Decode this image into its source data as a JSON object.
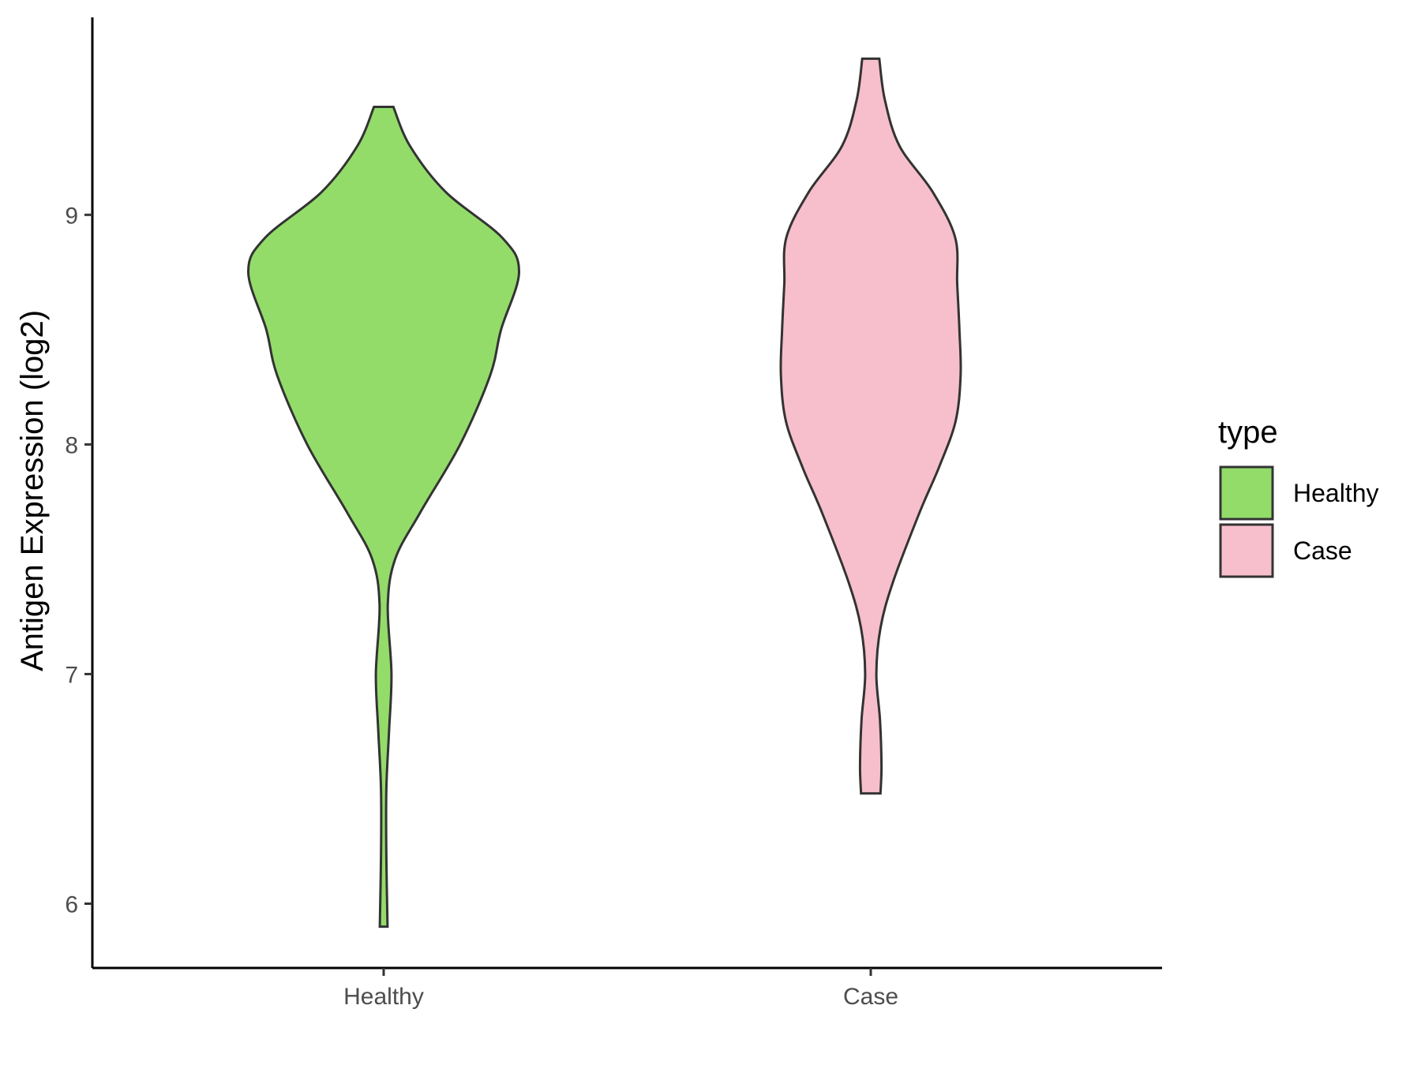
{
  "chart_data": {
    "type": "violin",
    "ylabel": "Antigen Expression (log2)",
    "xlabel": "",
    "categories": [
      "Healthy",
      "Case"
    ],
    "yticks": [
      6,
      7,
      8,
      9
    ],
    "ylim": [
      5.72,
      9.86
    ],
    "grid": false,
    "legend": {
      "title": "type",
      "position": "right",
      "items": [
        {
          "label": "Healthy",
          "color": "#93dc6a"
        },
        {
          "label": "Case",
          "color": "#f7bfcb"
        }
      ]
    },
    "series": [
      {
        "name": "Healthy",
        "color": "#93dc6a",
        "min": 5.9,
        "max": 9.47,
        "half_width_profile": [
          [
            5.9,
            0.016
          ],
          [
            6.2,
            0.011
          ],
          [
            6.5,
            0.011
          ],
          [
            6.75,
            0.022
          ],
          [
            7.0,
            0.032
          ],
          [
            7.3,
            0.017
          ],
          [
            7.5,
            0.047
          ],
          [
            7.7,
            0.148
          ],
          [
            8.0,
            0.314
          ],
          [
            8.3,
            0.437
          ],
          [
            8.5,
            0.482
          ],
          [
            8.75,
            0.556
          ],
          [
            8.9,
            0.487
          ],
          [
            9.1,
            0.254
          ],
          [
            9.3,
            0.108
          ],
          [
            9.47,
            0.04
          ]
        ]
      },
      {
        "name": "Case",
        "color": "#f7bfcb",
        "min": 6.48,
        "max": 9.68,
        "half_width_profile": [
          [
            6.48,
            0.04
          ],
          [
            6.6,
            0.044
          ],
          [
            6.8,
            0.038
          ],
          [
            7.0,
            0.023
          ],
          [
            7.2,
            0.04
          ],
          [
            7.4,
            0.091
          ],
          [
            7.7,
            0.199
          ],
          [
            7.9,
            0.28
          ],
          [
            8.1,
            0.348
          ],
          [
            8.3,
            0.369
          ],
          [
            8.5,
            0.364
          ],
          [
            8.7,
            0.355
          ],
          [
            8.9,
            0.347
          ],
          [
            9.1,
            0.254
          ],
          [
            9.3,
            0.118
          ],
          [
            9.5,
            0.058
          ],
          [
            9.68,
            0.035
          ]
        ]
      }
    ]
  }
}
